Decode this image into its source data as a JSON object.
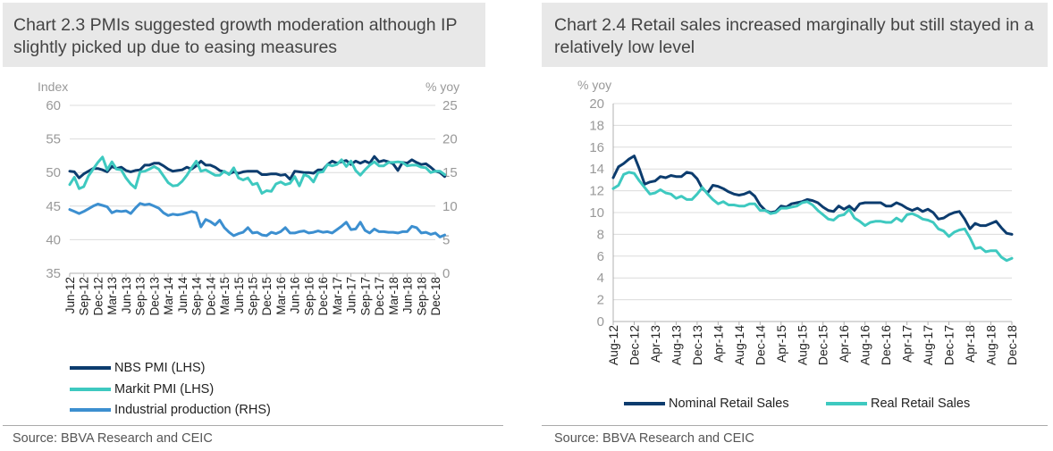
{
  "chart_data": [
    {
      "type": "line",
      "title": "Chart 2.3 PMIs suggested growth moderation although IP slightly picked up due to easing measures",
      "ylabel": "Index",
      "y2label": "% yoy",
      "ylim": [
        35,
        60
      ],
      "y2lim": [
        0,
        25
      ],
      "yticks": [
        "35",
        "40",
        "45",
        "50",
        "55",
        "60"
      ],
      "y2ticks": [
        "0",
        "5",
        "10",
        "15",
        "20",
        "25"
      ],
      "x_start": "2012-06",
      "x_end": "2018-12",
      "x_tick_labels": [
        "Jun-12",
        "Sep-12",
        "Dec-12",
        "Mar-13",
        "Jun-13",
        "Sep-13",
        "Dec-13",
        "Mar-14",
        "Jun-14",
        "Sep-14",
        "Dec-14",
        "Mar-15",
        "Jun-15",
        "Sep-15",
        "Dec-15",
        "Mar-16",
        "Jun-16",
        "Sep-16",
        "Dec-16",
        "Mar-17",
        "Jun-17",
        "Sep-17",
        "Dec-17",
        "Mar-18",
        "Jun-18",
        "Sep-18",
        "Dec-18"
      ],
      "grid": true,
      "legend_position": "bottom-left",
      "series": [
        {
          "name": "NBS PMI (LHS)",
          "axis": "left",
          "color": "#0c3c6e",
          "values": [
            50.2,
            50.1,
            49.2,
            49.8,
            50.2,
            50.6,
            50.6,
            50.4,
            50.1,
            50.9,
            50.6,
            50.8,
            50.3,
            50.1,
            50.3,
            50.4,
            51.1,
            51.1,
            51.4,
            51.4,
            51.0,
            50.5,
            50.2,
            50.3,
            50.4,
            50.8,
            50.5,
            51.0,
            51.7,
            51.1,
            51.1,
            50.8,
            50.3,
            50.1,
            49.8,
            50.1,
            49.9,
            50.1,
            50.2,
            50.2,
            50.2,
            49.7,
            49.7,
            49.8,
            49.8,
            49.6,
            49.7,
            49.0,
            50.2,
            50.1,
            50.0,
            50.0,
            49.9,
            50.4,
            50.4,
            51.2,
            51.7,
            51.4,
            51.6,
            51.8,
            51.2,
            51.7,
            51.4,
            51.7,
            51.4,
            52.4,
            51.6,
            51.8,
            51.6,
            51.3,
            50.3,
            51.5,
            51.4,
            51.9,
            51.5,
            51.2,
            51.3,
            50.8,
            50.2,
            50.0,
            49.4
          ]
        },
        {
          "name": "Markit PMI (LHS)",
          "axis": "left",
          "color": "#3ec9c0",
          "values": [
            48.2,
            49.3,
            47.6,
            47.9,
            49.5,
            50.5,
            51.5,
            52.3,
            50.4,
            51.6,
            50.5,
            50.4,
            49.2,
            48.3,
            47.7,
            50.1,
            50.2,
            50.5,
            50.9,
            50.5,
            49.5,
            48.5,
            48.0,
            48.1,
            48.7,
            49.6,
            50.7,
            51.7,
            50.2,
            50.4,
            50.0,
            49.6,
            49.6,
            50.2,
            49.7,
            50.7,
            49.2,
            48.9,
            49.2,
            48.2,
            48.4,
            46.9,
            47.3,
            47.2,
            48.3,
            48.6,
            48.2,
            48.4,
            49.4,
            48.0,
            49.7,
            49.4,
            48.6,
            50.0,
            50.1,
            51.2,
            51.0,
            51.2,
            51.9,
            50.9,
            51.7,
            50.3,
            49.6,
            50.4,
            51.1,
            51.6,
            51.0,
            51.0,
            51.5,
            51.5,
            51.6,
            51.5,
            51.0,
            51.1,
            51.1,
            50.8,
            50.7,
            50.0,
            50.2,
            50.2,
            49.7
          ]
        },
        {
          "name": "Industrial production (RHS)",
          "axis": "right",
          "color": "#3c8fd0",
          "values": [
            9.5,
            9.2,
            8.9,
            9.2,
            9.6,
            10.0,
            10.3,
            10.1,
            9.9,
            9.0,
            9.3,
            9.2,
            9.3,
            8.9,
            9.7,
            10.4,
            10.2,
            10.3,
            10.0,
            9.7,
            9.0,
            8.6,
            8.8,
            8.7,
            8.8,
            9.0,
            9.2,
            9.0,
            6.9,
            8.0,
            7.7,
            7.2,
            7.9,
            6.8,
            6.1,
            5.6,
            5.9,
            6.1,
            6.8,
            6.0,
            6.1,
            5.7,
            5.6,
            6.1,
            5.9,
            6.2,
            6.8,
            6.0,
            6.0,
            6.2,
            6.3,
            6.0,
            6.1,
            6.3,
            6.1,
            6.2,
            6.0,
            6.5,
            7.0,
            7.6,
            6.5,
            6.6,
            7.6,
            6.4,
            6.0,
            6.6,
            6.2,
            6.2,
            6.1,
            6.1,
            6.0,
            6.2,
            6.2,
            7.0,
            6.8,
            6.0,
            6.1,
            5.8,
            6.0,
            5.4,
            5.7
          ]
        }
      ]
    },
    {
      "type": "line",
      "title": "Chart 2.4 Retail sales increased marginally but still stayed in a relatively low level",
      "ylabel": "% yoy",
      "ylim": [
        0,
        20
      ],
      "yticks": [
        "0",
        "2",
        "4",
        "6",
        "8",
        "10",
        "12",
        "14",
        "16",
        "18",
        "20"
      ],
      "x_start": "2012-08",
      "x_end": "2018-12",
      "x_tick_labels": [
        "Aug-12",
        "Dec-12",
        "Apr-13",
        "Aug-13",
        "Dec-13",
        "Apr-14",
        "Aug-14",
        "Dec-14",
        "Apr-15",
        "Aug-15",
        "Dec-15",
        "Apr-16",
        "Aug-16",
        "Dec-16",
        "Apr-17",
        "Aug-17",
        "Dec-17",
        "Apr-18",
        "Aug-18",
        "Dec-18"
      ],
      "grid": true,
      "legend_position": "bottom",
      "series": [
        {
          "name": "Nominal Retail Sales",
          "color": "#0c3c6e",
          "values": [
            13.2,
            14.2,
            14.5,
            14.9,
            15.2,
            14.0,
            12.6,
            12.8,
            12.9,
            13.3,
            13.2,
            13.4,
            13.3,
            13.3,
            13.7,
            13.6,
            13.1,
            12.2,
            11.8,
            12.5,
            12.4,
            12.2,
            11.9,
            11.7,
            11.6,
            11.7,
            11.9,
            11.5,
            10.7,
            10.2,
            10.0,
            10.1,
            10.6,
            10.5,
            10.8,
            10.9,
            11.0,
            11.2,
            11.1,
            10.9,
            10.5,
            10.2,
            10.1,
            10.6,
            10.3,
            10.6,
            10.2,
            10.8,
            10.9,
            10.9,
            10.9,
            10.9,
            10.6,
            10.6,
            10.9,
            10.7,
            10.4,
            10.2,
            10.4,
            10.1,
            10.3,
            10.0,
            9.4,
            9.5,
            9.8,
            10.0,
            10.1,
            9.4,
            8.5,
            9.0,
            8.8,
            8.8,
            9.0,
            9.2,
            8.6,
            8.1,
            8.0
          ]
        },
        {
          "name": "Real Retail Sales",
          "color": "#3ec9c0",
          "values": [
            12.2,
            12.5,
            13.5,
            13.7,
            13.6,
            12.9,
            12.3,
            11.7,
            11.8,
            12.1,
            11.8,
            11.7,
            11.3,
            11.5,
            11.2,
            11.2,
            11.7,
            12.3,
            11.7,
            11.2,
            10.8,
            11.0,
            10.7,
            10.7,
            10.6,
            10.6,
            10.8,
            10.8,
            10.2,
            10.2,
            9.9,
            10.0,
            10.4,
            10.4,
            10.5,
            10.6,
            10.9,
            11.0,
            10.7,
            10.2,
            9.8,
            9.4,
            9.3,
            9.7,
            9.8,
            10.3,
            9.5,
            9.2,
            8.8,
            9.1,
            9.2,
            9.2,
            9.1,
            9.1,
            9.5,
            9.2,
            9.8,
            9.9,
            9.7,
            9.4,
            9.3,
            9.1,
            8.5,
            8.3,
            7.8,
            8.2,
            8.4,
            8.5,
            7.7,
            6.7,
            6.8,
            6.4,
            6.5,
            6.5,
            5.9,
            5.6,
            5.8
          ]
        }
      ]
    }
  ],
  "source_left": "Source: BBVA Research and CEIC",
  "source_right": "Source: BBVA Research and CEIC"
}
